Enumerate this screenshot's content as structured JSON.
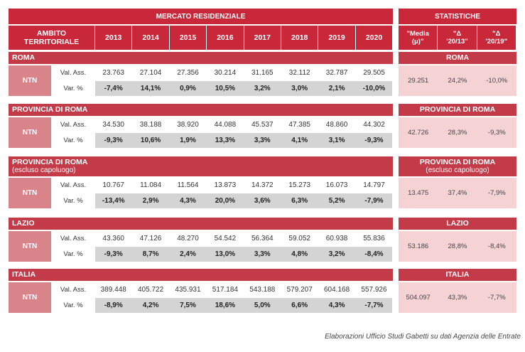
{
  "header": {
    "mercato": "MERCATO RESIDENZIALE",
    "statistiche": "STATISTICHE",
    "ambito_1": "AMBITO",
    "ambito_2": "TERRITORIALE",
    "years": [
      "2013",
      "2014",
      "2015",
      "2016",
      "2017",
      "2018",
      "2019",
      "2020"
    ],
    "stats": [
      "\"Media (μ)\"",
      "\"Δ '20/13\"",
      "\"Δ '20/19\""
    ]
  },
  "row_labels": {
    "ntn": "NTN",
    "val_ass": "Val. Ass.",
    "var_pct": "Var. %"
  },
  "sections": [
    {
      "title": "ROMA",
      "subtitle": "",
      "val_ass": [
        "23.763",
        "27.104",
        "27.356",
        "30.214",
        "31.165",
        "32.112",
        "32.787",
        "29.505"
      ],
      "var_pct": [
        "-7,4%",
        "14,1%",
        "0,9%",
        "10,5%",
        "3,2%",
        "3,0%",
        "2,1%",
        "-10,0%"
      ],
      "stats": [
        "29.251",
        "24,2%",
        "-10,0%"
      ]
    },
    {
      "title": "PROVINCIA DI ROMA",
      "subtitle": "",
      "val_ass": [
        "34.530",
        "38.188",
        "38.920",
        "44.088",
        "45.537",
        "47.385",
        "48.860",
        "44.302"
      ],
      "var_pct": [
        "-9,3%",
        "10,6%",
        "1,9%",
        "13,3%",
        "3,3%",
        "4,1%",
        "3,1%",
        "-9,3%"
      ],
      "stats": [
        "42.726",
        "28,3%",
        "-9,3%"
      ]
    },
    {
      "title": "PROVINCIA DI ROMA",
      "subtitle": "(escluso capoluogo)",
      "val_ass": [
        "10.767",
        "11.084",
        "11.564",
        "13.873",
        "14.372",
        "15.273",
        "16.073",
        "14.797"
      ],
      "var_pct": [
        "-13,4%",
        "2,9%",
        "4,3%",
        "20,0%",
        "3,6%",
        "6,3%",
        "5,2%",
        "-7,9%"
      ],
      "stats": [
        "13.475",
        "37,4%",
        "-7,9%"
      ]
    },
    {
      "title": "LAZIO",
      "subtitle": "",
      "val_ass": [
        "43.360",
        "47.126",
        "48.270",
        "54.542",
        "56.364",
        "59.052",
        "60.938",
        "55.836"
      ],
      "var_pct": [
        "-9,3%",
        "8,7%",
        "2,4%",
        "13,0%",
        "3,3%",
        "4,8%",
        "3,2%",
        "-8,4%"
      ],
      "stats": [
        "53.186",
        "28,8%",
        "-8,4%"
      ]
    },
    {
      "title": "ITALIA",
      "subtitle": "",
      "val_ass": [
        "389.448",
        "405.722",
        "435.931",
        "517.184",
        "543.188",
        "579.207",
        "604.168",
        "557.926"
      ],
      "var_pct": [
        "-8,9%",
        "4,2%",
        "7,5%",
        "18,6%",
        "5,0%",
        "6,6%",
        "4,3%",
        "-7,7%"
      ],
      "stats": [
        "504.097",
        "43,3%",
        "-7,7%"
      ]
    }
  ],
  "footnote": "Elaborazioni Ufficio Studi Gabetti su dati Agenzia delle Entrate"
}
